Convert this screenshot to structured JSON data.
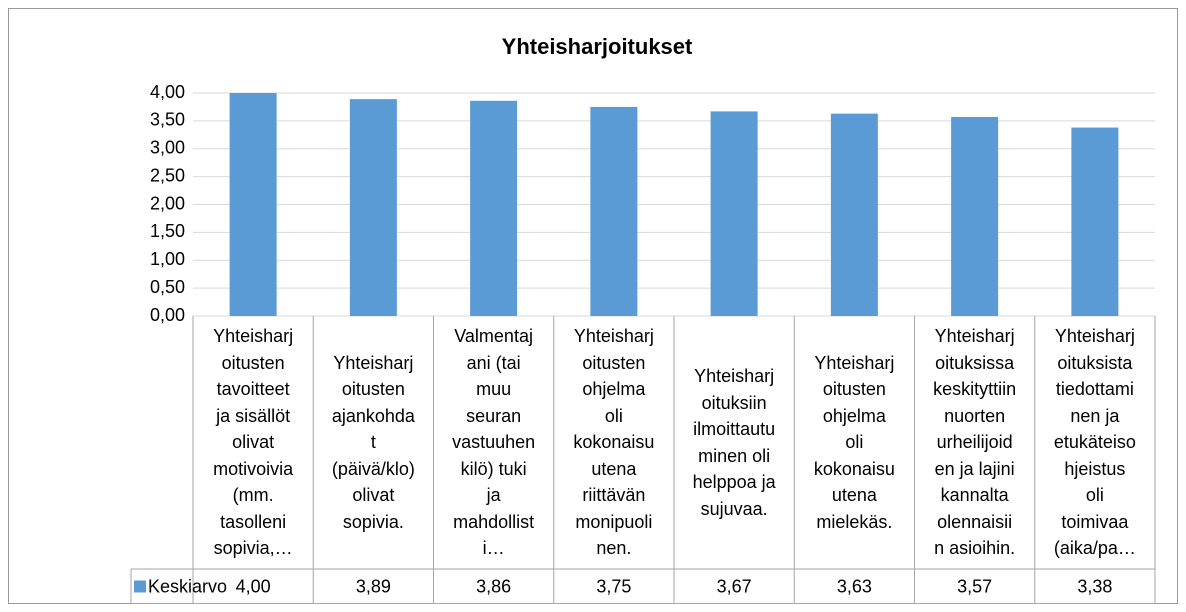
{
  "chart_data": {
    "type": "bar",
    "title": "Yhteisharjoitukset",
    "categories": [
      "Yhteisharj\noitusten\ntavoitteet\nja sisällöt\nolivat\nmotivoivia\n(mm.\ntasolleni\nsopivia,…",
      "Yhteisharj\noitusten\najankohda\nt\n(päivä/klo)\nolivat\nsopivia.",
      "Valmentaj\nani (tai\nmuu\nseuran\nvastuuhen\nkilö) tuki\nja\nmahdollist\ni…",
      "Yhteisharj\noitusten\nohjelma\noli\nkokonaisu\nutena\nriittävän\nmonipuoli\nnen.",
      "Yhteisharj\noituksiin\nilmoittautu\nminen oli\nhelppoa ja\nsujuvaa.",
      "Yhteisharj\noitusten\nohjelma\noli\nkokonaisu\nutena\nmielekäs.",
      "Yhteisharj\noituksissa\nkeskityttiin\nnuorten\nurheilijoid\nen ja lajini\nkannalta\nolennaisii\nn asioihin.",
      "Yhteisharj\noituksista\ntiedottami\nnen ja\netukäteiso\nhjeistus\noli\ntoimivaa\n(aika/pa…"
    ],
    "series": [
      {
        "name": "Keskiarvo",
        "color": "#5b9bd5",
        "values": [
          4.0,
          3.89,
          3.86,
          3.75,
          3.67,
          3.63,
          3.57,
          3.38
        ],
        "value_labels": [
          "4,00",
          "3,89",
          "3,86",
          "3,75",
          "3,67",
          "3,63",
          "3,57",
          "3,38"
        ]
      }
    ],
    "ylim": [
      0,
      4
    ],
    "yticks": [
      {
        "value": 0,
        "label": "0,00"
      },
      {
        "value": 0.5,
        "label": "0,50"
      },
      {
        "value": 1,
        "label": "1,00"
      },
      {
        "value": 1.5,
        "label": "1,50"
      },
      {
        "value": 2,
        "label": "2,00"
      },
      {
        "value": 2.5,
        "label": "2,50"
      },
      {
        "value": 3,
        "label": "3,00"
      },
      {
        "value": 3.5,
        "label": "3,50"
      },
      {
        "value": 4,
        "label": "4,00"
      }
    ],
    "grid": true,
    "legend": "table"
  }
}
